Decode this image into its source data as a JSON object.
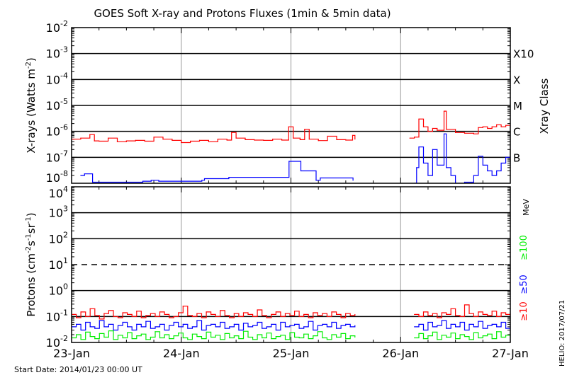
{
  "title": "GOES Soft X-ray and Protons Fluxes   (1min & 5min data)",
  "footer": {
    "start_date": "Start Date: 2014/01/23 00:00 UT",
    "stamp": "HELIO: 2017/07/21"
  },
  "colors": {
    "xray_long": "#ff0000",
    "xray_short": "#0000ff",
    "p10": "#ff0000",
    "p50": "#0000ff",
    "p100": "#00ee00",
    "day_grid": "#aaaaaa"
  },
  "x_axis": {
    "ticks": [
      "23-Jan",
      "24-Jan",
      "25-Jan",
      "26-Jan",
      "27-Jan"
    ],
    "range": [
      "01/23 00:00",
      "01/27 00:00"
    ]
  },
  "chart_data": [
    {
      "type": "line",
      "ylabel": "X-rays (Watts m^-2)",
      "ylabel_parts": [
        "X-rays (Watts m",
        "-2",
        ")"
      ],
      "yscale": "log",
      "ylim": [
        1e-08,
        0.01
      ],
      "ytick_exponents": [
        -2,
        -3,
        -4,
        -5,
        -6,
        -7,
        -8
      ],
      "right_label": "Xray Class",
      "classes": [
        {
          "label": "X10",
          "value": 0.001
        },
        {
          "label": "X",
          "value": 0.0001
        },
        {
          "label": "M",
          "value": 1e-05
        },
        {
          "label": "C",
          "value": 1e-06
        },
        {
          "label": "B",
          "value": 1e-07
        }
      ],
      "series": [
        {
          "color": "#ff0000",
          "points": [
            [
              "01/23 00:00",
              5e-07
            ],
            [
              "01/23 02:00",
              5.5e-07
            ],
            [
              "01/23 04:00",
              7.5e-07
            ],
            [
              "01/23 05:00",
              4.3e-07
            ],
            [
              "01/23 06:00",
              4.2e-07
            ],
            [
              "01/23 08:00",
              5.5e-07
            ],
            [
              "01/23 10:00",
              4e-07
            ],
            [
              "01/23 12:00",
              4.3e-07
            ],
            [
              "01/23 14:00",
              4.5e-07
            ],
            [
              "01/23 16:00",
              4.2e-07
            ],
            [
              "01/23 18:00",
              6e-07
            ],
            [
              "01/23 20:00",
              5e-07
            ],
            [
              "01/23 22:00",
              4.5e-07
            ],
            [
              "01/24 00:00",
              3.7e-07
            ],
            [
              "01/24 02:00",
              4.2e-07
            ],
            [
              "01/24 04:00",
              4.5e-07
            ],
            [
              "01/24 06:00",
              4e-07
            ],
            [
              "01/24 08:00",
              5e-07
            ],
            [
              "01/24 10:00",
              4.6e-07
            ],
            [
              "01/24 11:00",
              9e-07
            ],
            [
              "01/24 12:00",
              5.5e-07
            ],
            [
              "01/24 14:00",
              4.8e-07
            ],
            [
              "01/24 16:00",
              4.6e-07
            ],
            [
              "01/24 18:00",
              4.5e-07
            ],
            [
              "01/24 20:00",
              5e-07
            ],
            [
              "01/24 22:00",
              4.6e-07
            ],
            [
              "01/24 23:30",
              1.5e-06
            ],
            [
              "01/25 00:30",
              5.5e-07
            ],
            [
              "01/25 02:00",
              4.8e-07
            ],
            [
              "01/25 03:00",
              1.2e-06
            ],
            [
              "01/25 04:00",
              5e-07
            ],
            [
              "01/25 06:00",
              4.4e-07
            ],
            [
              "01/25 08:00",
              6.5e-07
            ],
            [
              "01/25 10:00",
              4.8e-07
            ],
            [
              "01/25 12:00",
              4.6e-07
            ],
            [
              "01/25 13:30",
              7e-07
            ],
            [
              "01/25 14:00",
              5e-07
            ],
            null,
            [
              "01/26 02:00",
              5.5e-07
            ],
            [
              "01/26 03:00",
              6e-07
            ],
            [
              "01/26 04:00",
              3e-06
            ],
            [
              "01/26 05:00",
              1.5e-06
            ],
            [
              "01/26 06:00",
              1e-06
            ],
            [
              "01/26 07:00",
              1.3e-06
            ],
            [
              "01/26 08:00",
              1.1e-06
            ],
            [
              "01/26 09:30",
              6e-06
            ],
            [
              "01/26 10:00",
              1.2e-06
            ],
            [
              "01/26 12:00",
              9e-07
            ],
            [
              "01/26 14:00",
              8.5e-07
            ],
            [
              "01/26 16:00",
              8e-07
            ],
            [
              "01/26 17:00",
              1.4e-06
            ],
            [
              "01/26 18:00",
              1.5e-06
            ],
            [
              "01/26 19:00",
              1.3e-06
            ],
            [
              "01/26 20:00",
              1.5e-06
            ],
            [
              "01/26 21:00",
              1.8e-06
            ],
            [
              "01/26 22:00",
              1.5e-06
            ],
            [
              "01/26 23:00",
              1.7e-06
            ],
            [
              "01/27 00:00",
              1.6e-06
            ]
          ]
        },
        {
          "color": "#0000ff",
          "points": [
            [
              "01/23 02:00",
              2e-08
            ],
            [
              "01/23 02:50",
              2.3e-08
            ],
            [
              "01/23 04:35",
              1.1e-08
            ],
            [
              "01/23 15:35",
              1.2e-08
            ],
            [
              "01/23 17:25",
              1.3e-08
            ],
            [
              "01/23 19:05",
              1.2e-08
            ],
            [
              "01/24 04:30",
              1.3e-08
            ],
            [
              "01/24 05:05",
              1.5e-08
            ],
            [
              "01/24 10:25",
              1.7e-08
            ],
            [
              "01/24 23:35",
              7e-08
            ],
            [
              "01/25 02:10",
              3e-08
            ],
            [
              "01/25 05:30",
              1.3e-08
            ],
            [
              "01/25 06:25",
              1.6e-08
            ],
            [
              "01/25 13:35",
              1.3e-08
            ],
            null,
            [
              "01/26 03:00",
              1e-08
            ],
            [
              "01/26 03:30",
              4e-08
            ],
            [
              "01/26 04:00",
              2.5e-07
            ],
            [
              "01/26 05:00",
              6e-08
            ],
            [
              "01/26 06:00",
              2e-08
            ],
            [
              "01/26 07:00",
              2e-07
            ],
            [
              "01/26 08:00",
              5e-08
            ],
            [
              "01/26 09:30",
              8e-07
            ],
            [
              "01/26 10:00",
              4e-08
            ],
            [
              "01/26 11:00",
              2e-08
            ],
            [
              "01/26 12:00",
              1e-08
            ],
            [
              "01/26 14:00",
              1.1e-08
            ],
            [
              "01/26 16:00",
              2e-08
            ],
            [
              "01/26 17:00",
              1.1e-07
            ],
            [
              "01/26 18:00",
              5e-08
            ],
            [
              "01/26 19:00",
              3e-08
            ],
            [
              "01/26 20:00",
              2e-08
            ],
            [
              "01/26 21:00",
              3e-08
            ],
            [
              "01/26 22:00",
              6e-08
            ],
            [
              "01/26 23:00",
              1e-07
            ],
            [
              "01/27 00:00",
              5e-08
            ]
          ]
        }
      ]
    },
    {
      "type": "line",
      "ylabel": "Protons (cm^-2 s^-1 sr^-1)",
      "ylabel_parts": [
        "Protons (cm",
        "-2",
        "s",
        "-1",
        "sr",
        "-1",
        ")"
      ],
      "yscale": "log",
      "ylim": [
        0.01,
        10000.0
      ],
      "ytick_exponents": [
        4,
        3,
        2,
        1,
        0,
        -1,
        -2
      ],
      "dashed_threshold": 10,
      "legend": {
        "unit": "MeV",
        "entries": [
          "≥100",
          "≥50",
          "≥10"
        ]
      },
      "series": [
        {
          "name": "≥10",
          "color": "#ff0000",
          "segments": [
            {
              "start": "01/23 00:00",
              "end": "01/25 14:00",
              "values": [
                0.12,
                0.09,
                0.15,
                0.1,
                0.2,
                0.11,
                0.08,
                0.13,
                0.17,
                0.1,
                0.09,
                0.14,
                0.12,
                0.1,
                0.16,
                0.09,
                0.11,
                0.13,
                0.1,
                0.15,
                0.12,
                0.09,
                0.1,
                0.14,
                0.25,
                0.11,
                0.1,
                0.13,
                0.09,
                0.15,
                0.12,
                0.1,
                0.17,
                0.11,
                0.09,
                0.13,
                0.1,
                0.14,
                0.12,
                0.1,
                0.18,
                0.11,
                0.09,
                0.12,
                0.15,
                0.1,
                0.13,
                0.11,
                0.16,
                0.1,
                0.12,
                0.09,
                0.14,
                0.11,
                0.13,
                0.1,
                0.15,
                0.12,
                0.09,
                0.13,
                0.11,
                0.12
              ]
            },
            {
              "start": "01/26 03:00",
              "end": "01/27 00:00",
              "values": [
                0.12,
                0.1,
                0.15,
                0.11,
                0.13,
                0.09,
                0.14,
                0.12,
                0.2,
                0.11,
                0.1,
                0.28,
                0.13,
                0.1,
                0.15,
                0.12,
                0.11,
                0.16,
                0.1,
                0.14,
                0.12,
                0.13
              ]
            }
          ]
        },
        {
          "name": "≥50",
          "color": "#0000ff",
          "segments": [
            {
              "start": "01/23 00:00",
              "end": "01/25 14:00",
              "values": [
                0.04,
                0.05,
                0.03,
                0.06,
                0.04,
                0.035,
                0.07,
                0.04,
                0.05,
                0.03,
                0.045,
                0.06,
                0.04,
                0.03,
                0.05,
                0.04,
                0.065,
                0.035,
                0.04,
                0.05,
                0.03,
                0.045,
                0.06,
                0.04,
                0.05,
                0.035,
                0.04,
                0.07,
                0.03,
                0.045,
                0.05,
                0.04,
                0.06,
                0.035,
                0.04,
                0.05,
                0.03,
                0.055,
                0.04,
                0.045,
                0.06,
                0.035,
                0.04,
                0.05,
                0.03,
                0.06,
                0.04,
                0.045,
                0.05,
                0.035,
                0.04,
                0.065,
                0.03,
                0.045,
                0.05,
                0.04,
                0.06,
                0.035,
                0.045,
                0.05,
                0.04,
                0.045
              ]
            },
            {
              "start": "01/26 03:00",
              "end": "01/27 00:00",
              "values": [
                0.04,
                0.05,
                0.03,
                0.06,
                0.04,
                0.045,
                0.07,
                0.035,
                0.05,
                0.04,
                0.06,
                0.03,
                0.05,
                0.04,
                0.065,
                0.035,
                0.045,
                0.05,
                0.04,
                0.06,
                0.035,
                0.05
              ]
            }
          ]
        },
        {
          "name": "≥100",
          "color": "#00ee00",
          "segments": [
            {
              "start": "01/23 00:00",
              "end": "01/25 14:00",
              "values": [
                0.015,
                0.02,
                0.013,
                0.025,
                0.017,
                0.014,
                0.022,
                0.016,
                0.028,
                0.013,
                0.019,
                0.015,
                0.024,
                0.014,
                0.018,
                0.021,
                0.013,
                0.016,
                0.026,
                0.015,
                0.02,
                0.014,
                0.018,
                0.023,
                0.015,
                0.013,
                0.021,
                0.017,
                0.014,
                0.025,
                0.016,
                0.019,
                0.013,
                0.022,
                0.015,
                0.018,
                0.014,
                0.027,
                0.016,
                0.013,
                0.02,
                0.015,
                0.023,
                0.014,
                0.017,
                0.019,
                0.013,
                0.024,
                0.016,
                0.015,
                0.021,
                0.014,
                0.018,
                0.026,
                0.015,
                0.013,
                0.02,
                0.016,
                0.022,
                0.014,
                0.018,
                0.016
              ]
            },
            {
              "start": "01/26 03:00",
              "end": "01/27 00:00",
              "values": [
                0.015,
                0.022,
                0.014,
                0.018,
                0.025,
                0.013,
                0.019,
                0.016,
                0.023,
                0.014,
                0.02,
                0.017,
                0.013,
                0.024,
                0.015,
                0.018,
                0.021,
                0.014,
                0.026,
                0.016,
                0.019,
                0.015
              ]
            }
          ]
        }
      ]
    }
  ]
}
